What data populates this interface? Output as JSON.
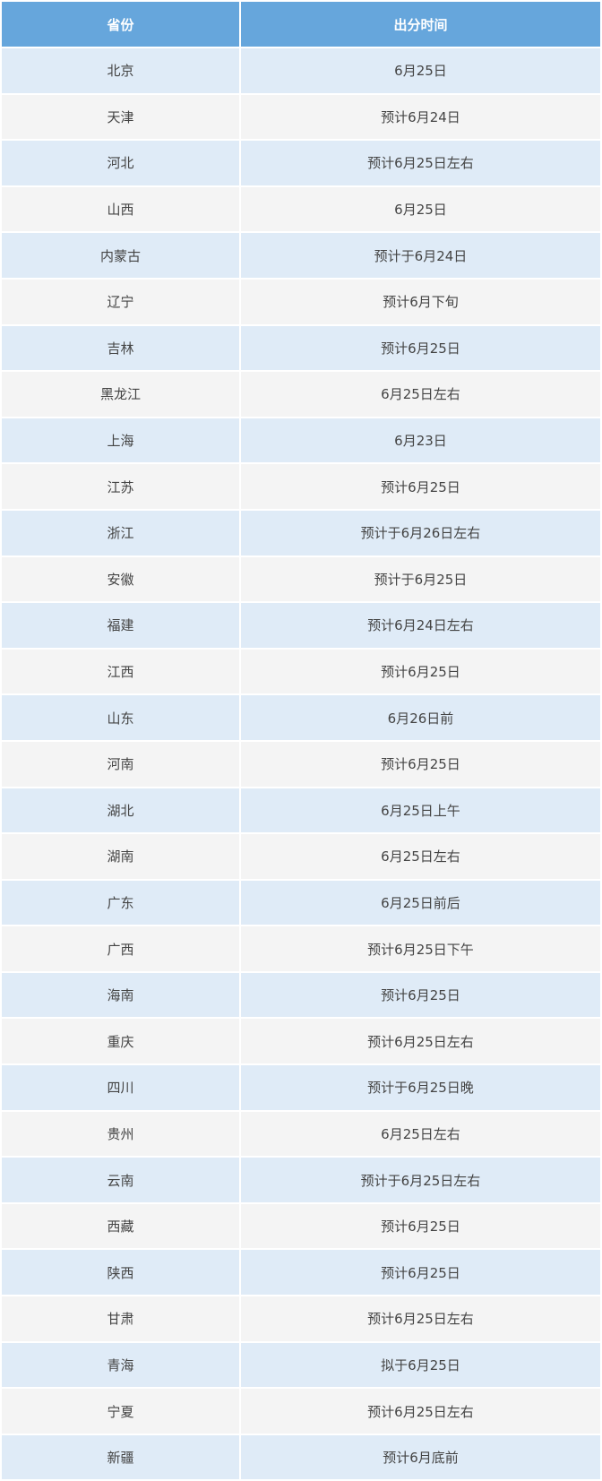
{
  "headers": [
    "省份",
    "出分时间"
  ],
  "rows": [
    [
      "北京",
      "6月25日"
    ],
    [
      "天津",
      "预计6月24日"
    ],
    [
      "河北",
      "预计6月25日左右"
    ],
    [
      "山西",
      "6月25日"
    ],
    [
      "内蒙古",
      "预计于6月24日"
    ],
    [
      "辽宁",
      "预计6月下旬"
    ],
    [
      "吉林",
      "预计6月25日"
    ],
    [
      "黑龙江",
      "6月25日左右"
    ],
    [
      "上海",
      "6月23日"
    ],
    [
      "江苏",
      "预计6月25日"
    ],
    [
      "浙江",
      "预计于6月26日左右"
    ],
    [
      "安徽",
      "预计于6月25日"
    ],
    [
      "福建",
      "预计6月24日左右"
    ],
    [
      "江西",
      "预计6月25日"
    ],
    [
      "山东",
      "6月26日前"
    ],
    [
      "河南",
      "预计6月25日"
    ],
    [
      "湖北",
      "6月25日上午"
    ],
    [
      "湖南",
      "6月25日左右"
    ],
    [
      "广东",
      "6月25日前后"
    ],
    [
      "广西",
      "预计6月25日下午"
    ],
    [
      "海南",
      "预计6月25日"
    ],
    [
      "重庆",
      "预计6月25日左右"
    ],
    [
      "四川",
      "预计于6月25日晚"
    ],
    [
      "贵州",
      "6月25日左右"
    ],
    [
      "云南",
      "预计于6月25日左右"
    ],
    [
      "西藏",
      "预计6月25日"
    ],
    [
      "陕西",
      "预计6月25日"
    ],
    [
      "甘肃",
      "预计6月25日左右"
    ],
    [
      "青海",
      "拟于6月25日"
    ],
    [
      "宁夏",
      "预计6月25日左右"
    ],
    [
      "新疆",
      "预计6月底前"
    ]
  ],
  "colors": {
    "header": "#66a6dc",
    "row_odd": "#dfebf7",
    "row_even": "#f4f4f4"
  }
}
